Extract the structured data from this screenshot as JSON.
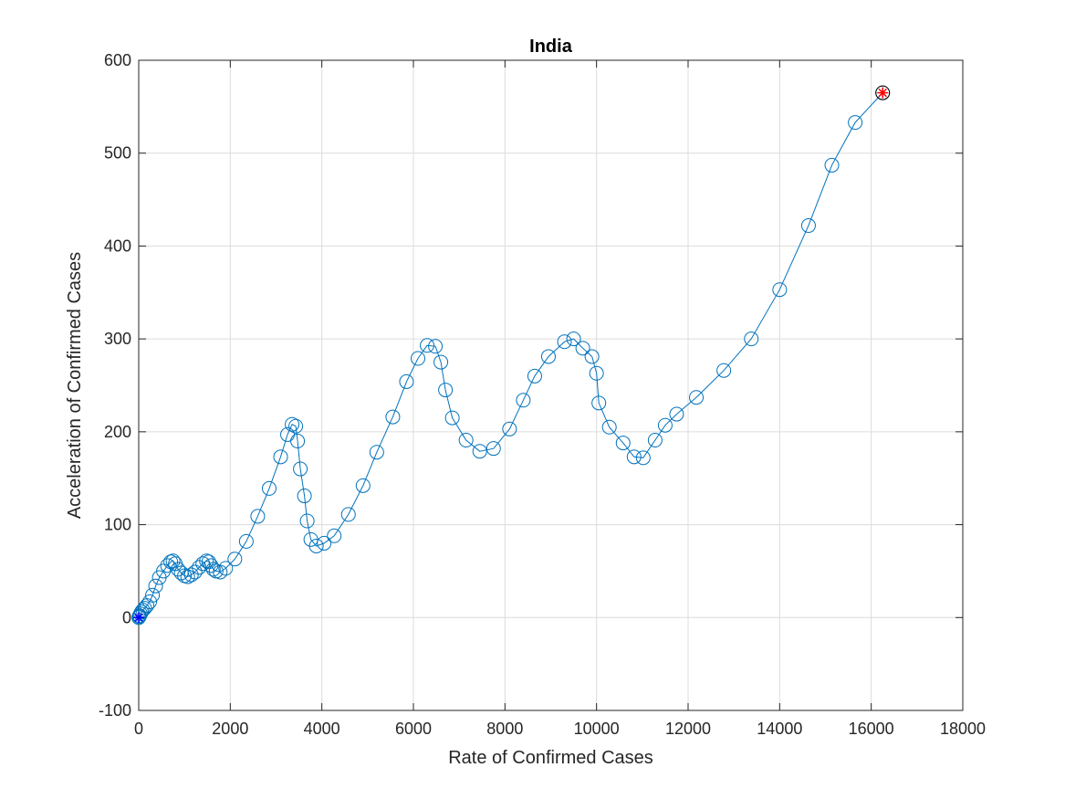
{
  "chart_data": {
    "type": "line",
    "title": "India",
    "xlabel": "Rate of Confirmed Cases",
    "ylabel": "Acceleration of Confirmed Cases",
    "xlim": [
      0,
      18000
    ],
    "ylim": [
      -100,
      600
    ],
    "xticks": [
      0,
      2000,
      4000,
      6000,
      8000,
      10000,
      12000,
      14000,
      16000,
      18000
    ],
    "yticks": [
      -100,
      0,
      100,
      200,
      300,
      400,
      500,
      600
    ],
    "xtick_labels": [
      "0",
      "2000",
      "4000",
      "6000",
      "8000",
      "10000",
      "12000",
      "14000",
      "16000",
      "18000"
    ],
    "ytick_labels": [
      "-100",
      "0",
      "100",
      "200",
      "300",
      "400",
      "500",
      "600"
    ],
    "grid": true,
    "line_color": "#0072BD",
    "start_marker_color": "#0000FF",
    "end_marker_color": "#FF0000",
    "series": [
      {
        "marker": "circle",
        "points": [
          [
            0,
            0
          ],
          [
            10,
            1
          ],
          [
            20,
            2
          ],
          [
            40,
            4
          ],
          [
            60,
            6
          ],
          [
            90,
            8
          ],
          [
            130,
            10
          ],
          [
            180,
            13
          ],
          [
            240,
            17
          ],
          [
            300,
            24
          ],
          [
            370,
            34
          ],
          [
            450,
            43
          ],
          [
            540,
            50
          ],
          [
            630,
            56
          ],
          [
            700,
            60
          ],
          [
            750,
            61
          ],
          [
            800,
            58
          ],
          [
            860,
            52
          ],
          [
            930,
            48
          ],
          [
            1000,
            45
          ],
          [
            1070,
            44
          ],
          [
            1150,
            46
          ],
          [
            1230,
            49
          ],
          [
            1320,
            54
          ],
          [
            1400,
            58
          ],
          [
            1480,
            61
          ],
          [
            1530,
            60
          ],
          [
            1580,
            56
          ],
          [
            1630,
            52
          ],
          [
            1690,
            50
          ],
          [
            1780,
            49
          ],
          [
            1900,
            53
          ],
          [
            2100,
            63
          ],
          [
            2350,
            82
          ],
          [
            2600,
            109
          ],
          [
            2850,
            139
          ],
          [
            3100,
            173
          ],
          [
            3250,
            197
          ],
          [
            3350,
            208
          ],
          [
            3430,
            206
          ],
          [
            3470,
            190
          ],
          [
            3530,
            160
          ],
          [
            3620,
            131
          ],
          [
            3680,
            104
          ],
          [
            3760,
            84
          ],
          [
            3880,
            77
          ],
          [
            4050,
            80
          ],
          [
            4270,
            88
          ],
          [
            4580,
            111
          ],
          [
            4900,
            142
          ],
          [
            5200,
            178
          ],
          [
            5550,
            216
          ],
          [
            5850,
            254
          ],
          [
            6100,
            279
          ],
          [
            6300,
            293
          ],
          [
            6480,
            292
          ],
          [
            6600,
            275
          ],
          [
            6700,
            245
          ],
          [
            6850,
            215
          ],
          [
            7150,
            191
          ],
          [
            7450,
            179
          ],
          [
            7750,
            182
          ],
          [
            8100,
            203
          ],
          [
            8400,
            234
          ],
          [
            8650,
            260
          ],
          [
            8950,
            281
          ],
          [
            9300,
            297
          ],
          [
            9500,
            300
          ],
          [
            9700,
            290
          ],
          [
            9900,
            281
          ],
          [
            10000,
            263
          ],
          [
            10050,
            231
          ],
          [
            10280,
            205
          ],
          [
            10580,
            188
          ],
          [
            10820,
            173
          ],
          [
            11020,
            172
          ],
          [
            11280,
            191
          ],
          [
            11500,
            207
          ],
          [
            11750,
            219
          ],
          [
            12180,
            237
          ],
          [
            12780,
            266
          ],
          [
            13380,
            300
          ],
          [
            14000,
            353
          ],
          [
            14630,
            422
          ],
          [
            15140,
            487
          ],
          [
            15650,
            533
          ],
          [
            16250,
            565
          ]
        ]
      }
    ]
  }
}
